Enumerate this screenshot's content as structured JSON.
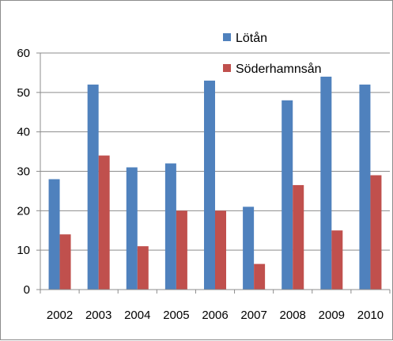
{
  "chart_data": {
    "type": "bar",
    "categories": [
      "2002",
      "2003",
      "2004",
      "2005",
      "2006",
      "2007",
      "2008",
      "2009",
      "2010"
    ],
    "series": [
      {
        "name": "Lötån",
        "color": "#4f81bd",
        "values": [
          28,
          52,
          31,
          32,
          53,
          21,
          48,
          54,
          52
        ]
      },
      {
        "name": "Söderhamnsån",
        "color": "#c0504d",
        "values": [
          14,
          34,
          11,
          20,
          20,
          6.5,
          26.5,
          15,
          29
        ]
      }
    ],
    "ylim": [
      0,
      60
    ],
    "yticks": [
      0,
      10,
      20,
      30,
      40,
      50,
      60
    ],
    "grid": true,
    "legend_position": "top-right"
  }
}
